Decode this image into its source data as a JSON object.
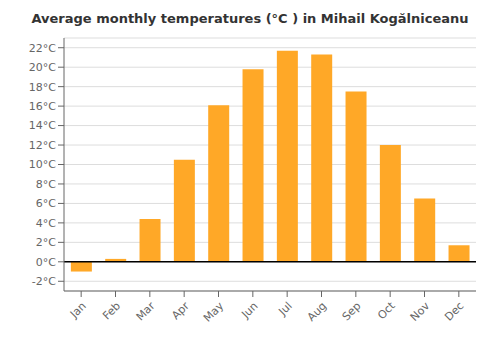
{
  "chart_data": {
    "type": "bar",
    "title": "Average monthly temperatures (°C ) in Mihail Kogălniceanu",
    "categories": [
      "Jan",
      "Feb",
      "Mar",
      "Apr",
      "May",
      "Jun",
      "Jul",
      "Aug",
      "Sep",
      "Oct",
      "Nov",
      "Dec"
    ],
    "values": [
      -1.0,
      0.3,
      4.4,
      10.5,
      16.1,
      19.8,
      21.7,
      21.3,
      17.5,
      12.0,
      6.5,
      1.7
    ],
    "color": "#FFA827",
    "ylim": [
      -3,
      23
    ],
    "yticks": [
      {
        "value": -2,
        "label": "-2°C"
      },
      {
        "value": 0,
        "label": "0°C"
      },
      {
        "value": 2,
        "label": "2°C"
      },
      {
        "value": 4,
        "label": "4°C"
      },
      {
        "value": 6,
        "label": "6°C"
      },
      {
        "value": 8,
        "label": "8°C"
      },
      {
        "value": 10,
        "label": "10°C"
      },
      {
        "value": 12,
        "label": "12°C"
      },
      {
        "value": 14,
        "label": "14°C"
      },
      {
        "value": 16,
        "label": "16°C"
      },
      {
        "value": 18,
        "label": "18°C"
      },
      {
        "value": 20,
        "label": "20°C"
      },
      {
        "value": 22,
        "label": "22°C"
      }
    ],
    "grid": true
  }
}
